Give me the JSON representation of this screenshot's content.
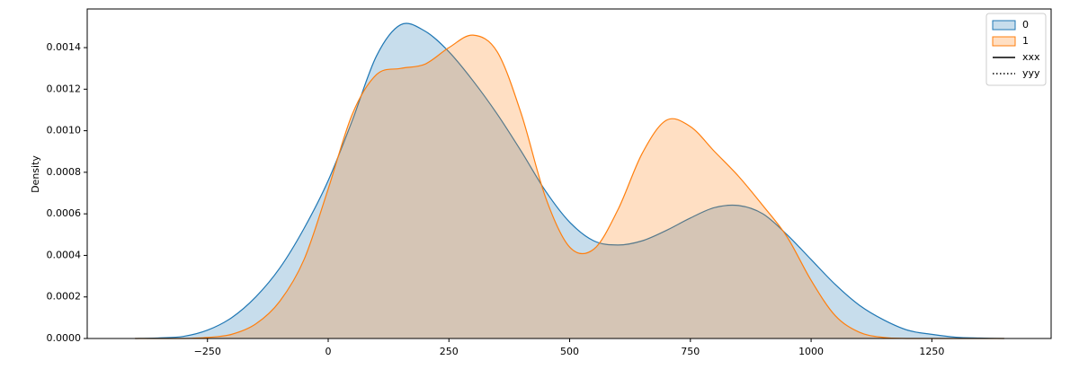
{
  "chart_data": {
    "type": "kde",
    "ylabel": "Density",
    "x": [
      -400,
      -350,
      -300,
      -250,
      -200,
      -150,
      -100,
      -50,
      0,
      50,
      100,
      150,
      200,
      250,
      300,
      350,
      400,
      450,
      500,
      550,
      600,
      650,
      700,
      750,
      800,
      850,
      900,
      950,
      1000,
      1050,
      1100,
      1150,
      1200,
      1250,
      1300,
      1350,
      1400
    ],
    "series": [
      {
        "name": "0",
        "color": "#1f77b4",
        "values": [
          0,
          3e-06,
          1e-05,
          4e-05,
          0.0001,
          0.0002,
          0.00034,
          0.00053,
          0.00076,
          0.00105,
          0.00136,
          0.00151,
          0.00148,
          0.00138,
          0.00124,
          0.00108,
          0.0009,
          0.00071,
          0.00056,
          0.00047,
          0.00045,
          0.00047,
          0.00052,
          0.00058,
          0.00063,
          0.00064,
          0.0006,
          0.0005,
          0.00038,
          0.00026,
          0.00016,
          9e-05,
          4e-05,
          2e-05,
          6e-06,
          2e-06,
          0
        ]
      },
      {
        "name": "1",
        "color": "#ff7f0e",
        "values": [
          0,
          0,
          0,
          5e-06,
          2e-05,
          7e-05,
          0.00018,
          0.00038,
          0.00072,
          0.00108,
          0.00127,
          0.0013,
          0.00132,
          0.0014,
          0.00146,
          0.00138,
          0.00108,
          0.00068,
          0.00044,
          0.00043,
          0.00062,
          0.00089,
          0.00105,
          0.00102,
          0.0009,
          0.00078,
          0.00064,
          0.00049,
          0.00028,
          0.00011,
          3e-05,
          5e-06,
          0,
          0,
          0,
          0,
          0
        ]
      }
    ],
    "legend_lines": [
      {
        "label": "xxx",
        "linestyle": "solid"
      },
      {
        "label": "yyy",
        "linestyle": "dotted"
      }
    ],
    "legend": "upper right",
    "xlim": [
      -499,
      1497
    ],
    "ylim": [
      0,
      0.001586
    ],
    "xticks": [
      {
        "value": -250,
        "label": "−250"
      },
      0,
      250,
      500,
      750,
      1000,
      1250
    ],
    "yticks": [
      {
        "value": 0,
        "label": "0.0000"
      },
      {
        "value": 0.0002,
        "label": "0.0002"
      },
      {
        "value": 0.0004,
        "label": "0.0004"
      },
      {
        "value": 0.0006,
        "label": "0.0006"
      },
      {
        "value": 0.0008,
        "label": "0.0008"
      },
      {
        "value": 0.001,
        "label": "0.0010"
      },
      {
        "value": 0.0012,
        "label": "0.0012"
      },
      {
        "value": 0.0014,
        "label": "0.0014"
      }
    ]
  }
}
